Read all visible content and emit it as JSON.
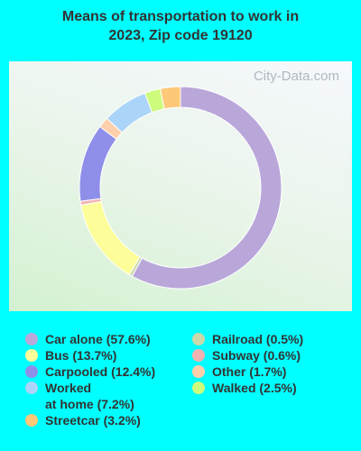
{
  "chart_data": {
    "type": "donut",
    "title": "Means of transportation to work in\n2023, Zip code 19120",
    "watermark": "City-Data.com",
    "categories": [
      "Car alone",
      "Railroad",
      "Bus",
      "Subway",
      "Carpooled",
      "Other",
      "Worked at home",
      "Walked",
      "Streetcar"
    ],
    "values": [
      57.6,
      0.5,
      13.7,
      0.6,
      12.4,
      1.7,
      7.2,
      2.5,
      3.2
    ],
    "labels": [
      "Car alone (57.6%)",
      "Railroad (0.5%)",
      "Bus (13.7%)",
      "Subway (0.6%)",
      "Carpooled (12.4%)",
      "Other (1.7%)",
      "Worked\nat home (7.2%)",
      "Walked (2.5%)",
      "Streetcar (3.2%)"
    ],
    "colors": [
      "#b9a7da",
      "#c9d9a9",
      "#fdfd99",
      "#f2b2b2",
      "#8f8fe9",
      "#fdcfaa",
      "#abd5f8",
      "#cdfb7c",
      "#fdc878"
    ]
  }
}
